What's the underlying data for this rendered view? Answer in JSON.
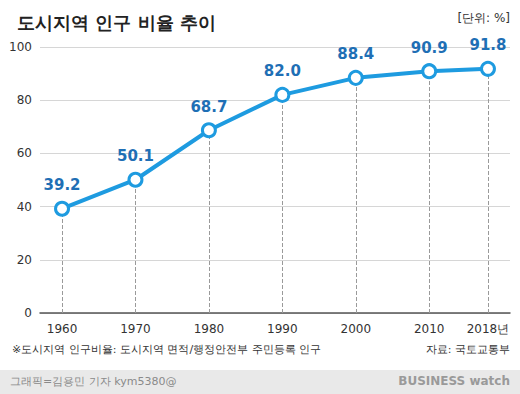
{
  "chart_data": {
    "type": "line",
    "title": "도시지역 인구 비율 추이",
    "unit_label": "[단위: %]",
    "x": [
      1960,
      1970,
      1980,
      1990,
      2000,
      2010,
      2018
    ],
    "values": [
      39.2,
      50.1,
      68.7,
      82.0,
      88.4,
      90.9,
      91.8
    ],
    "value_labels": [
      "39.2",
      "50.1",
      "68.7",
      "82.0",
      "88.4",
      "90.9",
      "91.8"
    ],
    "color": "#1e9be0",
    "marker": "circle",
    "data_labels": true,
    "xlim": [
      1957,
      2021
    ],
    "xticks": [
      1960,
      1970,
      1980,
      1990,
      2000,
      2010,
      {
        "value": 2018,
        "label": "2018년"
      }
    ],
    "ylim": [
      0,
      100
    ],
    "yticks": [
      0,
      20,
      40,
      60,
      80,
      100
    ],
    "grid": true,
    "footnote": "※도시지역 인구비율: 도시지역 면적/행정안전부 주민등록 인구",
    "source": "자료: 국토교통부",
    "credit": "그래픽=김용민 기자 kym5380@",
    "logo": "BUSINESS watch"
  }
}
